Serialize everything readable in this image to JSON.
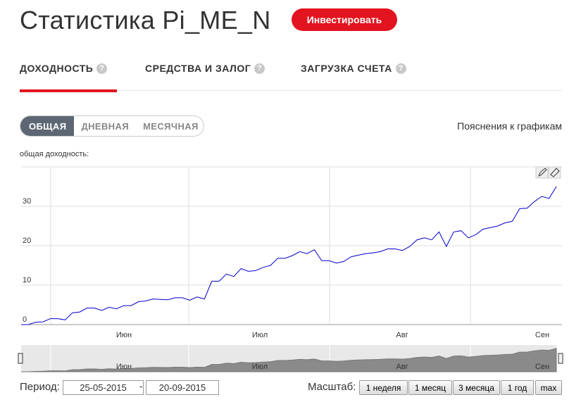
{
  "header": {
    "title": "Статистика Pi_ME_N",
    "invest_button": "Инвестировать"
  },
  "tabs": [
    "ДОХОДНОСТЬ",
    "СРЕДСТВА И ЗАЛОГ",
    "ЗАГРУЗКА СЧЕТА"
  ],
  "help_icon": "?",
  "modes": [
    "ОБЩАЯ",
    "ДНЕВНАЯ",
    "МЕСЯЧНАЯ"
  ],
  "explanations_link": "Пояснения к графикам",
  "chart_data": {
    "type": "line",
    "title": "общая доходность:",
    "x_labels": [
      "Июн",
      "Июл",
      "Авг",
      "Сен"
    ],
    "values": [
      0,
      0,
      0.6,
      0.7,
      1.5,
      1.5,
      1.2,
      3.0,
      3.2,
      4.2,
      4.2,
      3.6,
      4.4,
      4.0,
      4.8,
      4.8,
      5.8,
      6.0,
      6.5,
      6.4,
      6.3,
      6.8,
      6.8,
      6.2,
      7.0,
      6.5,
      11.0,
      11.0,
      12.8,
      12.2,
      14.2,
      13.5,
      13.7,
      14.5,
      15.0,
      16.8,
      16.8,
      17.5,
      18.5,
      18.0,
      19.0,
      16.2,
      16.2,
      15.6,
      16.0,
      17.2,
      17.6,
      18.0,
      18.2,
      18.5,
      19.2,
      19.2,
      18.8,
      19.8,
      21.5,
      22.0,
      21.5,
      23.5,
      19.8,
      23.5,
      23.8,
      22.0,
      22.8,
      24.2,
      24.6,
      25.0,
      25.8,
      26.2,
      29.4,
      29.5,
      31.2,
      32.5,
      32.0,
      35.0
    ],
    "color": "#0000cc",
    "ylim": [
      0,
      40
    ],
    "yticks": [
      0,
      10,
      20,
      30
    ],
    "grid": true
  },
  "period": {
    "label": "Период:",
    "from": "25-05-2015",
    "separator": "-",
    "to": "20-09-2015"
  },
  "zoom": {
    "label": "Масштаб:",
    "buttons": [
      "1 неделя",
      "1 месяц",
      "3 месяца",
      "1 год",
      "max"
    ]
  }
}
